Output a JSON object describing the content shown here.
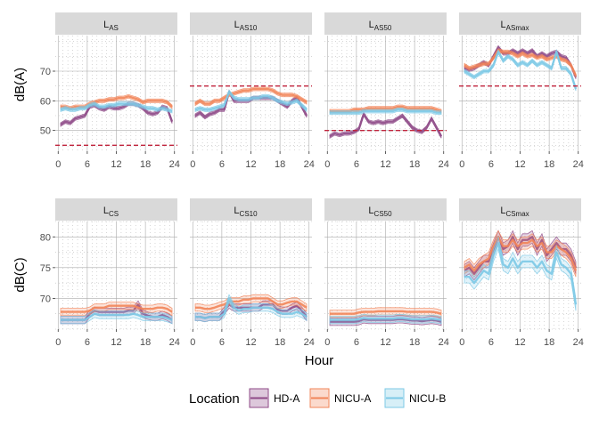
{
  "chart_data": {
    "type": "line",
    "xlabel": "Hour",
    "x_ticks": [
      0,
      6,
      12,
      18,
      24
    ],
    "legend": {
      "title": "Location",
      "position": "bottom",
      "entries": [
        "HD-A",
        "NICU-A",
        "NICU-B"
      ]
    },
    "colors": {
      "HD-A": "#8E4A87",
      "NICU-A": "#F28559",
      "NICU-B": "#7CC9E6",
      "threshold": "#C0243C"
    },
    "rows": [
      {
        "ylabel": "dB(A)",
        "ylim": [
          43,
          82
        ],
        "y_ticks": [
          50,
          60,
          70
        ]
      },
      {
        "ylabel": "dB(C)",
        "ylim": [
          65,
          82.5
        ],
        "y_ticks": [
          70,
          75,
          80
        ]
      }
    ],
    "panels": [
      {
        "row": 0,
        "col": 0,
        "label_main": "L",
        "label_sub": "AS",
        "threshold": 45,
        "series": [
          {
            "name": "HD-A",
            "values": [
              52,
              53,
              52.5,
              54,
              54.5,
              55,
              58,
              58.5,
              57.5,
              57,
              58,
              57.5,
              57.5,
              58,
              59,
              59,
              58.5,
              57.5,
              56,
              55.5,
              56,
              58,
              57.5,
              53
            ]
          },
          {
            "name": "NICU-A",
            "values": [
              58,
              58,
              57.5,
              58,
              58,
              58,
              59,
              59.5,
              60,
              60,
              60.5,
              60.5,
              61,
              61,
              61.5,
              61,
              60.5,
              59.5,
              60,
              60,
              60,
              60,
              59.5,
              58
            ]
          },
          {
            "name": "NICU-B",
            "values": [
              57,
              57.5,
              57,
              57,
              57.5,
              57.5,
              58.5,
              59,
              58,
              58,
              58.5,
              58.5,
              59,
              59,
              59,
              59,
              58.5,
              58,
              57.5,
              57.5,
              57,
              57.5,
              57,
              56.5
            ]
          }
        ]
      },
      {
        "row": 0,
        "col": 1,
        "label_main": "L",
        "label_sub": "AS10",
        "threshold": 65,
        "series": [
          {
            "name": "HD-A",
            "values": [
              55,
              56,
              54.5,
              55.5,
              56,
              57,
              57,
              63,
              60,
              60,
              60,
              60,
              61,
              61,
              61,
              61,
              61,
              60,
              59,
              58,
              60,
              61,
              58,
              55
            ]
          },
          {
            "name": "NICU-A",
            "values": [
              59,
              60,
              59,
              59,
              60,
              60,
              61,
              62,
              62.5,
              63,
              63.5,
              63.5,
              64,
              64,
              64,
              64,
              63.5,
              62.5,
              62,
              62,
              62,
              61.5,
              60.5,
              59.5
            ]
          },
          {
            "name": "NICU-B",
            "values": [
              57,
              57.5,
              57,
              57,
              57.5,
              58,
              58.5,
              63,
              61,
              60.5,
              60.5,
              60.5,
              61,
              61,
              61.5,
              61.5,
              61,
              60,
              59.5,
              59,
              59.5,
              60,
              58.5,
              57
            ]
          }
        ]
      },
      {
        "row": 0,
        "col": 2,
        "label_main": "L",
        "label_sub": "AS50",
        "threshold": 50,
        "series": [
          {
            "name": "HD-A",
            "values": [
              48,
              49,
              48.5,
              49,
              49,
              49.5,
              50.5,
              55.5,
              53,
              52.5,
              53,
              52.5,
              53,
              53,
              54,
              55,
              53,
              51,
              50,
              49.5,
              51,
              54,
              51,
              48
            ]
          },
          {
            "name": "NICU-A",
            "values": [
              56.5,
              56.5,
              56.5,
              56.5,
              56.5,
              57,
              57,
              57,
              57.5,
              57.5,
              57.5,
              57.5,
              57.5,
              57.5,
              58,
              58,
              57.5,
              57.5,
              57.5,
              57.5,
              57.5,
              57.5,
              57,
              56.5
            ]
          },
          {
            "name": "NICU-B",
            "values": [
              56,
              56,
              56,
              56,
              56,
              56,
              56,
              56.5,
              56.5,
              56.5,
              56.5,
              56.5,
              56.5,
              56.5,
              57,
              57,
              56.5,
              56.5,
              56.5,
              56.5,
              56.5,
              56.5,
              56,
              56
            ]
          }
        ]
      },
      {
        "row": 0,
        "col": 3,
        "label_main": "L",
        "label_sub": "ASmax",
        "threshold": 65,
        "series": [
          {
            "name": "HD-A",
            "values": [
              71,
              70.5,
              71,
              72,
              73,
              72,
              75,
              78,
              76,
              76,
              77,
              76,
              77,
              76,
              77,
              75,
              76,
              75,
              76,
              76.5,
              75,
              74.5,
              72,
              68
            ]
          },
          {
            "name": "NICU-A",
            "values": [
              72,
              71,
              71.5,
              72,
              72.5,
              72.5,
              74.5,
              77,
              76.5,
              76.5,
              76,
              75,
              76,
              75,
              75.5,
              74.5,
              75,
              74,
              74.5,
              75,
              74,
              73.5,
              72,
              68.5
            ]
          },
          {
            "name": "NICU-B",
            "values": [
              70,
              69,
              68,
              69,
              70,
              70,
              72,
              76.5,
              73.5,
              75,
              74,
              72,
              73,
              72,
              73.5,
              72,
              73,
              72,
              71,
              76.5,
              71,
              71,
              69,
              64
            ]
          }
        ]
      },
      {
        "row": 1,
        "col": 0,
        "label_main": "L",
        "label_sub": "CS",
        "threshold": null,
        "series": [
          {
            "name": "HD-A",
            "values": [
              66.5,
              66.5,
              66.5,
              66.5,
              66.5,
              66.5,
              67.5,
              68,
              67.8,
              67.8,
              67.8,
              67.8,
              67.8,
              67.8,
              68,
              68,
              69,
              67.5,
              67.2,
              67,
              67,
              67.3,
              67,
              66.5
            ]
          },
          {
            "name": "NICU-A",
            "values": [
              67.8,
              67.8,
              67.8,
              67.8,
              67.8,
              67.8,
              68,
              68.5,
              68.5,
              68.5,
              68.8,
              68.8,
              68.8,
              68.8,
              68.8,
              68.8,
              68.5,
              68.3,
              68.3,
              68.3,
              68.5,
              68.5,
              68.3,
              67.8
            ]
          },
          {
            "name": "NICU-B",
            "values": [
              66.5,
              66.5,
              66.5,
              66.5,
              66.5,
              66.5,
              67,
              67.5,
              67.3,
              67.3,
              67.3,
              67.3,
              67.3,
              67.3,
              67.3,
              67.5,
              67.3,
              67,
              67,
              67,
              67,
              67,
              66.8,
              66.5
            ]
          }
        ]
      },
      {
        "row": 1,
        "col": 1,
        "label_main": "L",
        "label_sub": "CS10",
        "threshold": null,
        "series": [
          {
            "name": "HD-A",
            "values": [
              67,
              67,
              66.8,
              67,
              67,
              67,
              68,
              69,
              68.5,
              68.5,
              68.5,
              68.5,
              68.5,
              68.5,
              69,
              69,
              69,
              68.2,
              68,
              68,
              68.5,
              68.8,
              68,
              67
            ]
          },
          {
            "name": "NICU-A",
            "values": [
              68.5,
              68.5,
              68.3,
              68.3,
              68.5,
              68.8,
              69,
              69.5,
              69.5,
              69.5,
              69.8,
              69.8,
              70,
              70,
              70,
              70,
              69.5,
              69,
              69,
              69.3,
              69.5,
              69.5,
              69,
              68.5
            ]
          },
          {
            "name": "NICU-B",
            "values": [
              67,
              67,
              66.8,
              67,
              67,
              67,
              67.5,
              70,
              68.5,
              68,
              68.3,
              68.3,
              68.5,
              68.5,
              68.5,
              68.5,
              68.3,
              67.8,
              67.5,
              67.5,
              67.5,
              67.8,
              67.5,
              67
            ]
          }
        ]
      },
      {
        "row": 1,
        "col": 2,
        "label_main": "L",
        "label_sub": "CS50",
        "threshold": null,
        "series": [
          {
            "name": "HD-A",
            "values": [
              66.2,
              66.2,
              66.2,
              66.2,
              66.2,
              66.2,
              66.3,
              66.6,
              66.5,
              66.5,
              66.5,
              66.5,
              66.5,
              66.5,
              66.6,
              66.6,
              66.5,
              66.4,
              66.4,
              66.3,
              66.4,
              66.5,
              66.4,
              66.2
            ]
          },
          {
            "name": "NICU-A",
            "values": [
              67.5,
              67.5,
              67.5,
              67.5,
              67.5,
              67.5,
              67.7,
              67.8,
              67.8,
              67.8,
              67.9,
              67.9,
              67.9,
              67.9,
              67.9,
              67.9,
              67.8,
              67.8,
              67.8,
              67.8,
              67.8,
              67.8,
              67.7,
              67.5
            ]
          },
          {
            "name": "NICU-B",
            "values": [
              66.5,
              66.5,
              66.5,
              66.5,
              66.5,
              66.5,
              66.6,
              66.8,
              66.7,
              66.7,
              66.7,
              66.7,
              66.7,
              66.7,
              66.8,
              66.8,
              66.7,
              66.6,
              66.6,
              66.6,
              66.6,
              66.7,
              66.6,
              66.5
            ]
          }
        ]
      },
      {
        "row": 1,
        "col": 3,
        "label_main": "L",
        "label_sub": "CSmax",
        "threshold": null,
        "series": [
          {
            "name": "HD-A",
            "values": [
              74.5,
              75,
              74,
              75,
              76,
              76,
              78,
              80,
              78,
              78.5,
              80,
              78,
              79.5,
              79.5,
              80,
              78,
              79.5,
              77,
              78,
              79,
              78,
              78,
              77,
              75
            ]
          },
          {
            "name": "NICU-A",
            "values": [
              75,
              75.5,
              74.5,
              75.5,
              76,
              76.5,
              78.5,
              80,
              78.5,
              78.5,
              79.5,
              78.5,
              79,
              79,
              79.5,
              78.5,
              79,
              77.5,
              77.5,
              78.5,
              78,
              77.5,
              76.5,
              74.5
            ]
          },
          {
            "name": "NICU-B",
            "values": [
              73.5,
              73.5,
              72.5,
              73.5,
              74.5,
              74,
              77,
              79,
              75.5,
              75,
              76.5,
              75,
              76,
              76,
              76,
              75,
              76,
              74.5,
              74,
              77.5,
              75.5,
              75,
              74,
              69
            ]
          }
        ]
      }
    ]
  }
}
